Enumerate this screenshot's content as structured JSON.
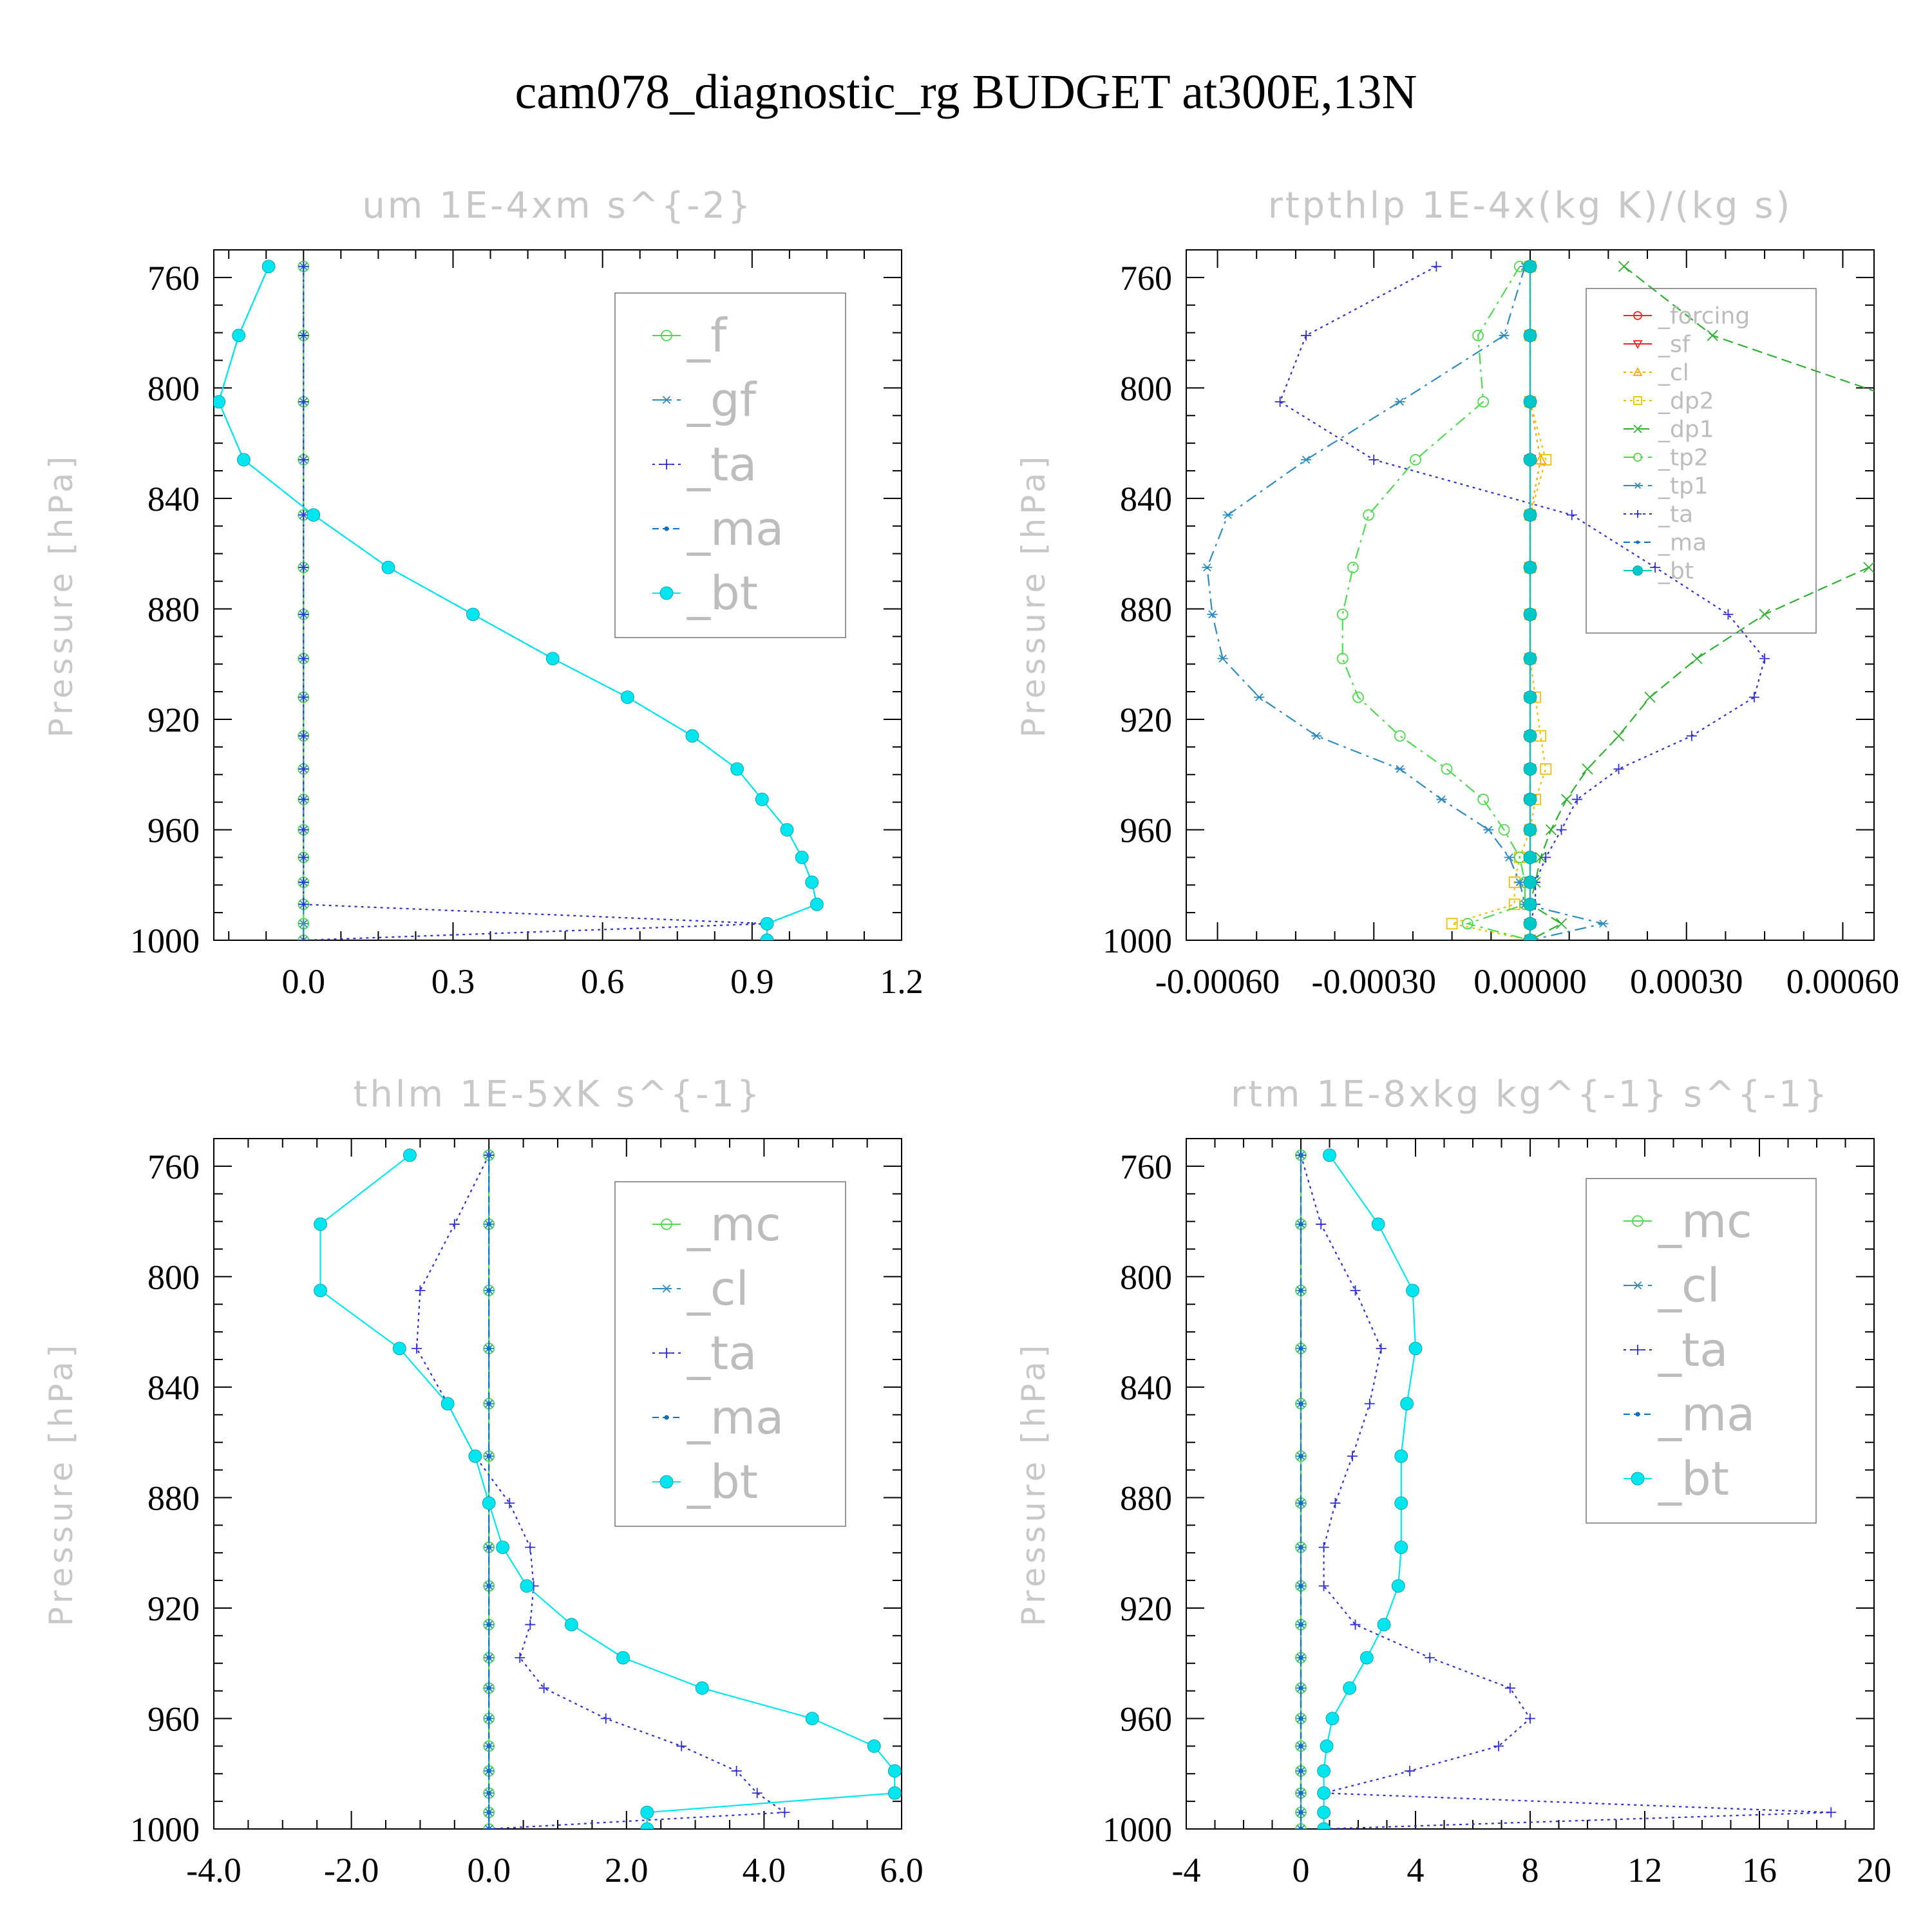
{
  "title": "cam078_diagnostic_rg  BUDGET at300E,13N",
  "chart_data": [
    {
      "type": "line",
      "title": "um  1E-4xm s^{-2}",
      "ylabel": "Pressure [hPa]",
      "xlim": [
        -0.18,
        1.2
      ],
      "ylim": [
        1000,
        750
      ],
      "xticks": [
        "0.0",
        "0.3",
        "0.6",
        "0.9",
        "1.2"
      ],
      "xtick_values": [
        0.0,
        0.3,
        0.6,
        0.9,
        1.2
      ],
      "yticks": [
        "760",
        "800",
        "840",
        "880",
        "920",
        "960",
        "1000"
      ],
      "ytick_values": [
        760,
        800,
        840,
        880,
        920,
        960,
        1000
      ],
      "pressure": [
        756,
        781,
        805,
        826,
        846,
        865,
        882,
        898,
        912,
        926,
        938,
        949,
        960,
        970,
        979,
        987,
        994,
        1000
      ],
      "series": [
        {
          "name": "_f",
          "color": "#4fd94f",
          "marker": "circle-open",
          "dash": "",
          "values": [
            0,
            0,
            0,
            0,
            0,
            0,
            0,
            0,
            0,
            0,
            0,
            0,
            0,
            0,
            0,
            0,
            0,
            0
          ]
        },
        {
          "name": "_gf",
          "color": "#2e8bc0",
          "marker": "asterisk",
          "dash": "18,8,4,8",
          "values": [
            0,
            0,
            0,
            0,
            0,
            0,
            0,
            0,
            0,
            0,
            0,
            0,
            0,
            0,
            0,
            0,
            0,
            0
          ]
        },
        {
          "name": "_ta",
          "color": "#3030d0",
          "marker": "plus",
          "dash": "4,6",
          "values": [
            0,
            0,
            0,
            0,
            0,
            0,
            0,
            0,
            0,
            0,
            0,
            0,
            0,
            0,
            0,
            0,
            0.93,
            0
          ]
        },
        {
          "name": "_ma",
          "color": "#1070c0",
          "marker": "dot",
          "dash": "10,6",
          "values": [
            -0.07,
            -0.13,
            -0.17,
            -0.12,
            0.02,
            0.17,
            0.34,
            0.5,
            0.65,
            0.78,
            0.87,
            0.92,
            0.97,
            1.0,
            1.02,
            1.03,
            0.93,
            0.93
          ]
        },
        {
          "name": "_bt",
          "color": "#00e5ee",
          "marker": "filled",
          "dash": "",
          "values": [
            -0.07,
            -0.13,
            -0.17,
            -0.12,
            0.02,
            0.17,
            0.34,
            0.5,
            0.65,
            0.78,
            0.87,
            0.92,
            0.97,
            1.0,
            1.02,
            1.03,
            0.93,
            0.93
          ]
        }
      ]
    },
    {
      "type": "line",
      "title": "rtpthlp  1E-4x(kg K)/(kg s)",
      "ylabel": "Pressure [hPa]",
      "xlim": [
        -0.00066,
        0.00066
      ],
      "ylim": [
        1000,
        750
      ],
      "xticks": [
        "-0.00060",
        "-0.00030",
        "0.00000",
        "0.00030",
        "0.00060"
      ],
      "xtick_values": [
        -0.0006,
        -0.0003,
        0.0,
        0.0003,
        0.0006
      ],
      "yticks": [
        "760",
        "800",
        "840",
        "880",
        "920",
        "960",
        "1000"
      ],
      "ytick_values": [
        760,
        800,
        840,
        880,
        920,
        960,
        1000
      ],
      "pressure": [
        756,
        781,
        805,
        826,
        846,
        865,
        882,
        898,
        912,
        926,
        938,
        949,
        960,
        970,
        979,
        987,
        994,
        1000
      ],
      "series": [
        {
          "name": "_forcing",
          "color": "#ff2020",
          "marker": "circle-open",
          "dash": "",
          "values": [
            0,
            0,
            0,
            0,
            0,
            0,
            0,
            0,
            0,
            0,
            0,
            0,
            0,
            0,
            0,
            0,
            0,
            0
          ]
        },
        {
          "name": "_sf",
          "color": "#ff2020",
          "marker": "triangle-down",
          "dash": "",
          "values": [
            0,
            0,
            0,
            0,
            0,
            0,
            0,
            0,
            0,
            0,
            0,
            0,
            0,
            0,
            0,
            0,
            0,
            0
          ]
        },
        {
          "name": "_cl",
          "color": "#ffa500",
          "marker": "triangle-up",
          "dash": "4,6",
          "values": [
            0,
            0,
            0,
            2e-05,
            0,
            0,
            0,
            0,
            0,
            0,
            0,
            0,
            0,
            0,
            0,
            0,
            0,
            0
          ]
        },
        {
          "name": "_dp2",
          "color": "#f0c000",
          "marker": "square-open",
          "dash": "4,6",
          "values": [
            0,
            0,
            0,
            3e-05,
            0,
            0,
            0,
            0,
            1e-05,
            2e-05,
            3e-05,
            1e-05,
            0,
            -2e-05,
            -3e-05,
            -3e-05,
            -0.00015,
            0
          ]
        },
        {
          "name": "_dp1",
          "color": "#30b030",
          "marker": "cross",
          "dash": "16,8",
          "values": [
            0.00018,
            0.00035,
            0.00072,
            0.00085,
            0.00078,
            0.00065,
            0.00045,
            0.00032,
            0.00023,
            0.00017,
            0.00011,
            7e-05,
            4e-05,
            2e-05,
            1e-05,
            0,
            6e-05,
            0
          ]
        },
        {
          "name": "_tp2",
          "color": "#4fd94f",
          "marker": "circle-open",
          "dash": "18,8,4,8",
          "values": [
            -2e-05,
            -0.0001,
            -9e-05,
            -0.00022,
            -0.00031,
            -0.00034,
            -0.00036,
            -0.00036,
            -0.00033,
            -0.00025,
            -0.00016,
            -9e-05,
            -5e-05,
            -2e-05,
            -1e-05,
            -1e-05,
            -0.00012,
            0
          ]
        },
        {
          "name": "_tp1",
          "color": "#2e8bc0",
          "marker": "asterisk",
          "dash": "18,8,4,8",
          "values": [
            -1e-05,
            -5e-05,
            -0.00025,
            -0.00043,
            -0.00058,
            -0.00062,
            -0.00061,
            -0.00059,
            -0.00052,
            -0.00041,
            -0.00025,
            -0.00017,
            -8e-05,
            -4e-05,
            -2e-05,
            -1e-05,
            0.00014,
            0
          ]
        },
        {
          "name": "_ta",
          "color": "#3030d0",
          "marker": "plus",
          "dash": "4,6",
          "values": [
            -0.00018,
            -0.00043,
            -0.00048,
            -0.0003,
            8e-05,
            0.00024,
            0.00038,
            0.00045,
            0.00043,
            0.00031,
            0.00017,
            9e-05,
            6e-05,
            3e-05,
            1e-05,
            1e-05,
            0,
            0
          ]
        },
        {
          "name": "_ma",
          "color": "#1070c0",
          "marker": "dot",
          "dash": "10,6",
          "values": [
            0,
            0,
            0,
            0,
            0,
            0,
            0,
            0,
            0,
            0,
            0,
            0,
            0,
            0,
            0,
            0,
            0,
            0
          ]
        },
        {
          "name": "_bt",
          "color": "#00c8c8",
          "marker": "filled",
          "dash": "",
          "values": [
            0,
            0,
            0,
            0,
            0,
            0,
            0,
            0,
            0,
            0,
            0,
            0,
            0,
            0,
            0,
            0,
            0,
            0
          ]
        }
      ]
    },
    {
      "type": "line",
      "title": "thlm  1E-5xK s^{-1}",
      "ylabel": "Pressure [hPa]",
      "xlim": [
        -4.0,
        6.0
      ],
      "ylim": [
        1000,
        750
      ],
      "xticks": [
        "-4.0",
        "-2.0",
        "0.0",
        "2.0",
        "4.0",
        "6.0"
      ],
      "xtick_values": [
        -4.0,
        -2.0,
        0.0,
        2.0,
        4.0,
        6.0
      ],
      "yticks": [
        "760",
        "800",
        "840",
        "880",
        "920",
        "960",
        "1000"
      ],
      "ytick_values": [
        760,
        800,
        840,
        880,
        920,
        960,
        1000
      ],
      "pressure": [
        756,
        781,
        805,
        826,
        846,
        865,
        882,
        898,
        912,
        926,
        938,
        949,
        960,
        970,
        979,
        987,
        994,
        1000
      ],
      "series": [
        {
          "name": "_mc",
          "color": "#4fd94f",
          "marker": "circle-open",
          "dash": "",
          "values": [
            0,
            0,
            0,
            0,
            0,
            0,
            0,
            0,
            0,
            0,
            0,
            0,
            0,
            0,
            0,
            0,
            0,
            0
          ]
        },
        {
          "name": "_cl",
          "color": "#2e8bc0",
          "marker": "asterisk",
          "dash": "18,8,4,8",
          "values": [
            0,
            0,
            0,
            0,
            0,
            0,
            0,
            0,
            0,
            0,
            0,
            0,
            0,
            0,
            0,
            0,
            0,
            0
          ]
        },
        {
          "name": "_ta",
          "color": "#3030d0",
          "marker": "plus",
          "dash": "4,6",
          "values": [
            0.0,
            -0.5,
            -1.0,
            -1.05,
            -0.6,
            -0.2,
            0.3,
            0.6,
            0.65,
            0.6,
            0.45,
            0.8,
            1.7,
            2.8,
            3.6,
            3.9,
            4.3,
            0.0
          ]
        },
        {
          "name": "_ma",
          "color": "#1070c0",
          "marker": "dot",
          "dash": "10,6",
          "values": [
            0,
            0,
            0,
            0,
            0,
            0,
            0,
            0,
            0,
            0,
            0,
            0,
            0,
            0,
            0,
            0,
            0,
            0
          ]
        },
        {
          "name": "_bt",
          "color": "#00e5ee",
          "marker": "filled",
          "dash": "",
          "values": [
            -1.15,
            -2.45,
            -2.45,
            -1.3,
            -0.6,
            -0.2,
            0.0,
            0.2,
            0.55,
            1.2,
            1.95,
            3.1,
            4.7,
            5.6,
            5.9,
            5.9,
            2.3,
            2.3
          ]
        }
      ]
    },
    {
      "type": "line",
      "title": "rtm  1E-8xkg kg^{-1} s^{-1}",
      "ylabel": "Pressure [hPa]",
      "xlim": [
        -4,
        20
      ],
      "ylim": [
        1000,
        750
      ],
      "xticks": [
        "-4",
        "0",
        "4",
        "8",
        "12",
        "16",
        "20"
      ],
      "xtick_values": [
        -4,
        0,
        4,
        8,
        12,
        16,
        20
      ],
      "yticks": [
        "760",
        "800",
        "840",
        "880",
        "920",
        "960",
        "1000"
      ],
      "ytick_values": [
        760,
        800,
        840,
        880,
        920,
        960,
        1000
      ],
      "pressure": [
        756,
        781,
        805,
        826,
        846,
        865,
        882,
        898,
        912,
        926,
        938,
        949,
        960,
        970,
        979,
        987,
        994,
        1000
      ],
      "series": [
        {
          "name": "_mc",
          "color": "#4fd94f",
          "marker": "circle-open",
          "dash": "",
          "values": [
            0,
            0,
            0,
            0,
            0,
            0,
            0,
            0,
            0,
            0,
            0,
            0,
            0,
            0,
            0,
            0,
            0,
            0
          ]
        },
        {
          "name": "_cl",
          "color": "#2e8bc0",
          "marker": "asterisk",
          "dash": "18,8,4,8",
          "values": [
            0,
            0,
            0,
            0,
            0,
            0,
            0,
            0,
            0,
            0,
            0,
            0,
            0,
            0,
            0,
            0,
            0,
            0
          ]
        },
        {
          "name": "_ta",
          "color": "#3030d0",
          "marker": "plus",
          "dash": "4,6",
          "values": [
            0.0,
            0.7,
            1.9,
            2.8,
            2.4,
            1.8,
            1.2,
            0.8,
            0.8,
            1.9,
            4.5,
            7.3,
            8.0,
            6.9,
            3.8,
            0.8,
            18.5,
            0.8
          ]
        },
        {
          "name": "_ma",
          "color": "#1070c0",
          "marker": "dot",
          "dash": "10,6",
          "values": [
            0,
            0,
            0,
            0,
            0,
            0,
            0,
            0,
            0,
            0,
            0,
            0,
            0,
            0,
            0,
            0,
            0,
            0
          ]
        },
        {
          "name": "_bt",
          "color": "#00e5ee",
          "marker": "filled",
          "dash": "",
          "values": [
            1.0,
            2.7,
            3.9,
            4.0,
            3.7,
            3.5,
            3.5,
            3.5,
            3.4,
            2.9,
            2.3,
            1.7,
            1.1,
            0.9,
            0.8,
            0.8,
            0.8,
            0.8
          ]
        }
      ]
    }
  ]
}
